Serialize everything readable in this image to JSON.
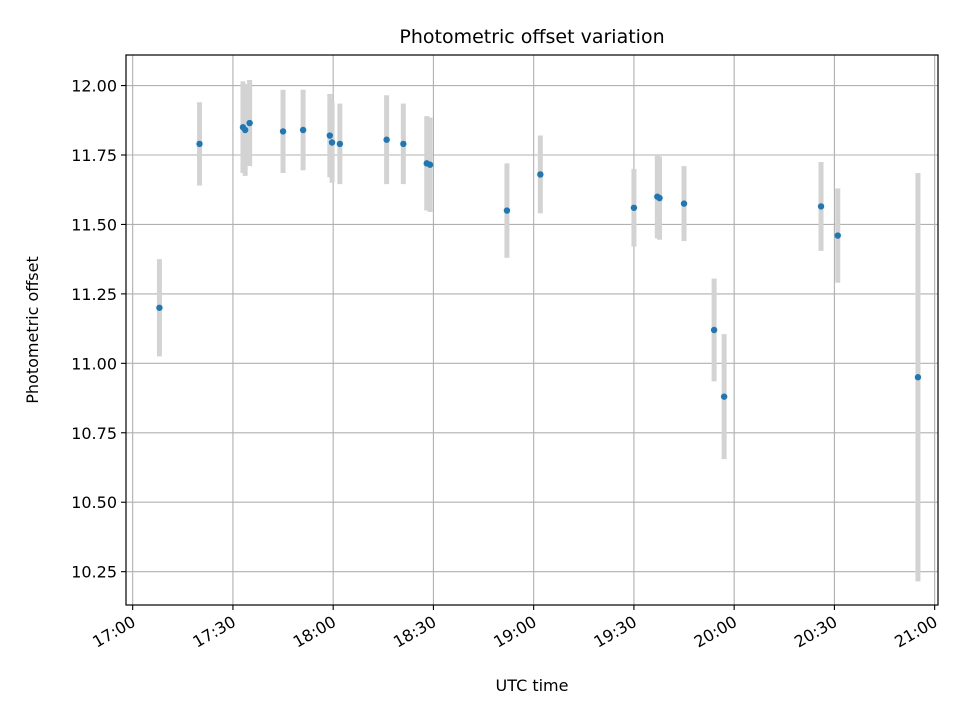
{
  "chart_data": {
    "type": "scatter",
    "title": "Photometric offset variation",
    "xlabel": "UTC time",
    "ylabel": "Photometric offset",
    "x_axis": {
      "kind": "time",
      "range": [
        "16:58",
        "21:01"
      ],
      "ticks": [
        "17:00",
        "17:30",
        "18:00",
        "18:30",
        "19:00",
        "19:30",
        "20:00",
        "20:30",
        "21:00"
      ]
    },
    "y_axis": {
      "range": [
        10.13,
        12.11
      ],
      "ticks": [
        "10.25",
        "10.50",
        "10.75",
        "11.00",
        "11.25",
        "11.50",
        "11.75",
        "12.00"
      ]
    },
    "grid": true,
    "legend": "none",
    "colors": {
      "points": "#1f77b4",
      "error_bars": "#d3d3d3",
      "grid": "#b0b0b0"
    },
    "series": [
      {
        "points": [
          {
            "x": "17:08",
            "y": 11.2,
            "err": 0.175
          },
          {
            "x": "17:20",
            "y": 11.79,
            "err": 0.15
          },
          {
            "x": "17:33",
            "y": 11.85,
            "err": 0.165
          },
          {
            "x": "17:33:40",
            "y": 11.84,
            "err": 0.165
          },
          {
            "x": "17:35",
            "y": 11.865,
            "err": 0.155
          },
          {
            "x": "17:45",
            "y": 11.835,
            "err": 0.15
          },
          {
            "x": "17:51",
            "y": 11.84,
            "err": 0.145
          },
          {
            "x": "17:59",
            "y": 11.82,
            "err": 0.15
          },
          {
            "x": "17:59:40",
            "y": 11.795,
            "err": 0.145
          },
          {
            "x": "18:02",
            "y": 11.79,
            "err": 0.145
          },
          {
            "x": "18:16",
            "y": 11.805,
            "err": 0.16
          },
          {
            "x": "18:21",
            "y": 11.79,
            "err": 0.145
          },
          {
            "x": "18:28",
            "y": 11.72,
            "err": 0.17
          },
          {
            "x": "18:29",
            "y": 11.715,
            "err": 0.17
          },
          {
            "x": "18:52",
            "y": 11.55,
            "err": 0.17
          },
          {
            "x": "19:02",
            "y": 11.68,
            "err": 0.14
          },
          {
            "x": "19:30",
            "y": 11.56,
            "err": 0.14
          },
          {
            "x": "19:37",
            "y": 11.6,
            "err": 0.15
          },
          {
            "x": "19:37:40",
            "y": 11.595,
            "err": 0.15
          },
          {
            "x": "19:45",
            "y": 11.575,
            "err": 0.135
          },
          {
            "x": "19:54",
            "y": 11.12,
            "err": 0.185
          },
          {
            "x": "19:57",
            "y": 10.88,
            "err": 0.225
          },
          {
            "x": "20:26",
            "y": 11.565,
            "err": 0.16
          },
          {
            "x": "20:31",
            "y": 11.46,
            "err": 0.17
          },
          {
            "x": "20:55",
            "y": 10.95,
            "err": 0.735
          }
        ]
      }
    ]
  }
}
